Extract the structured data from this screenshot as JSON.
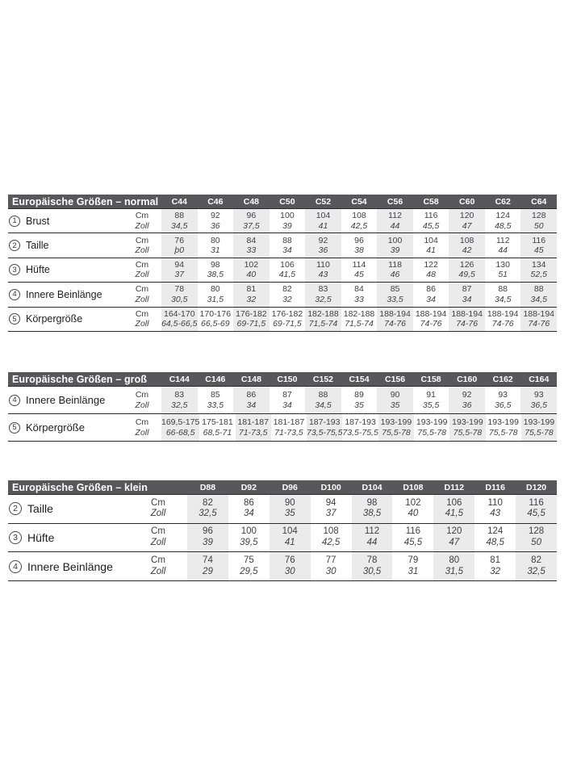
{
  "colors": {
    "header_bg": "#58585a",
    "header_text": "#ffffff",
    "stripe_bg": "#ebebeb",
    "line": "#2b292c",
    "text": "#414144"
  },
  "units": {
    "cm": "Cm",
    "zoll": "Zoll"
  },
  "tables": [
    {
      "title": "Europäische Größen – normal",
      "columns": [
        "C44",
        "C46",
        "C48",
        "C50",
        "C52",
        "C54",
        "C56",
        "C58",
        "C60",
        "C62",
        "C64"
      ],
      "rows": [
        {
          "num": "1",
          "label": "Brust",
          "cm": [
            "88",
            "92",
            "96",
            "100",
            "104",
            "108",
            "112",
            "116",
            "120",
            "124",
            "128"
          ],
          "zoll": [
            "34,5",
            "36",
            "37,5",
            "39",
            "41",
            "42,5",
            "44",
            "45,5",
            "47",
            "48,5",
            "50"
          ]
        },
        {
          "num": "2",
          "label": "Taille",
          "cm": [
            "76",
            "80",
            "84",
            "88",
            "92",
            "96",
            "100",
            "104",
            "108",
            "112",
            "116"
          ],
          "zoll": [
            "þ0",
            "31",
            "33",
            "34",
            "36",
            "38",
            "39",
            "41",
            "42",
            "44",
            "45"
          ]
        },
        {
          "num": "3",
          "label": "Hüfte",
          "cm": [
            "94",
            "98",
            "102",
            "106",
            "110",
            "114",
            "118",
            "122",
            "126",
            "130",
            "134"
          ],
          "zoll": [
            "37",
            "38,5",
            "40",
            "41,5",
            "43",
            "45",
            "46",
            "48",
            "49,5",
            "51",
            "52,5"
          ]
        },
        {
          "num": "4",
          "label": "Innere Beinlänge",
          "cm": [
            "78",
            "80",
            "81",
            "82",
            "83",
            "84",
            "85",
            "86",
            "87",
            "88",
            "88"
          ],
          "zoll": [
            "30,5",
            "31,5",
            "32",
            "32",
            "32,5",
            "33",
            "33,5",
            "34",
            "34",
            "34,5",
            "34,5"
          ]
        },
        {
          "num": "5",
          "label": "Körpergröße",
          "cm": [
            "164-170",
            "170-176",
            "176-182",
            "176-182",
            "182-188",
            "182-188",
            "188-194",
            "188-194",
            "188-194",
            "188-194",
            "188-194"
          ],
          "zoll": [
            "64,5-66,5",
            "66,5-69",
            "69-71,5",
            "69-71,5",
            "71,5-74",
            "71,5-74",
            "74-76",
            "74-76",
            "74-76",
            "74-76",
            "74-76"
          ]
        }
      ]
    },
    {
      "title": "Europäische Größen – groß",
      "columns": [
        "C144",
        "C146",
        "C148",
        "C150",
        "C152",
        "C154",
        "C156",
        "C158",
        "C160",
        "C162",
        "C164"
      ],
      "rows": [
        {
          "num": "4",
          "label": "Innere Beinlänge",
          "cm": [
            "83",
            "85",
            "86",
            "87",
            "88",
            "89",
            "90",
            "91",
            "92",
            "93",
            "93"
          ],
          "zoll": [
            "32,5",
            "33,5",
            "34",
            "34",
            "34,5",
            "35",
            "35",
            "35,5",
            "36",
            "36,5",
            "36,5"
          ]
        },
        {
          "num": "5",
          "label": "Körpergröße",
          "cm": [
            "169,5-175",
            "175-181",
            "181-187",
            "181-187",
            "187-193",
            "187-193",
            "193-199",
            "193-199",
            "193-199",
            "193-199",
            "193-199"
          ],
          "zoll": [
            "66-68,5",
            "68,5-71",
            "71-73,5",
            "71-73,5",
            "73,5-75,5",
            "73,5-75,5",
            "75,5-78",
            "75,5-78",
            "75,5-78",
            "75,5-78",
            "75,5-78"
          ]
        }
      ]
    },
    {
      "title": "Europäische Größen – klein",
      "columns": [
        "D88",
        "D92",
        "D96",
        "D100",
        "D104",
        "D108",
        "D112",
        "D116",
        "D120"
      ],
      "rows": [
        {
          "num": "2",
          "label": "Taille",
          "cm": [
            "82",
            "86",
            "90",
            "94",
            "98",
            "102",
            "106",
            "110",
            "116"
          ],
          "zoll": [
            "32,5",
            "34",
            "35",
            "37",
            "38,5",
            "40",
            "41,5",
            "43",
            "45,5"
          ]
        },
        {
          "num": "3",
          "label": "Hüfte",
          "cm": [
            "96",
            "100",
            "104",
            "108",
            "112",
            "116",
            "120",
            "124",
            "128"
          ],
          "zoll": [
            "39",
            "39,5",
            "41",
            "42,5",
            "44",
            "45,5",
            "47",
            "48,5",
            "50"
          ]
        },
        {
          "num": "4",
          "label": "Innere Beinlänge",
          "cm": [
            "74",
            "75",
            "76",
            "77",
            "78",
            "79",
            "80",
            "81",
            "82"
          ],
          "zoll": [
            "29",
            "29,5",
            "30",
            "30",
            "30,5",
            "31",
            "31,5",
            "32",
            "32,5"
          ]
        }
      ]
    }
  ]
}
